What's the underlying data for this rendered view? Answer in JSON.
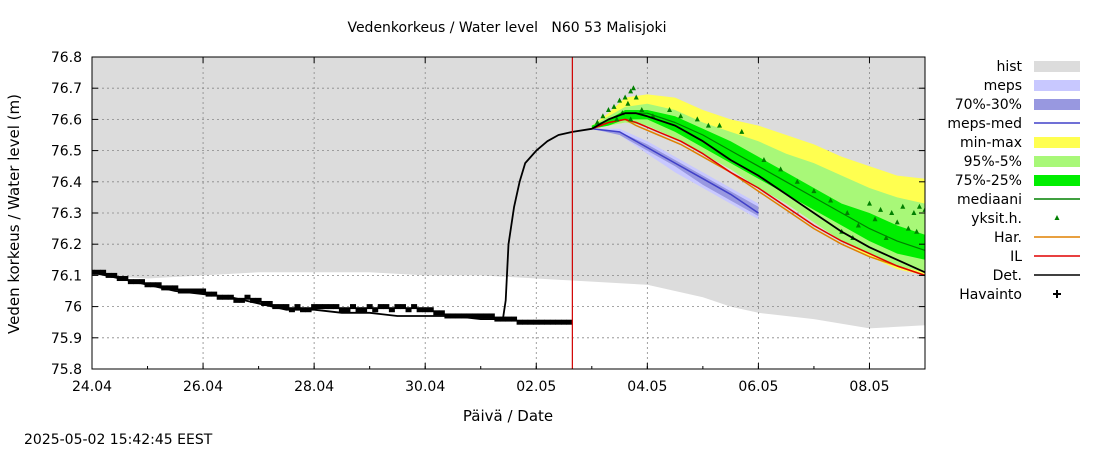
{
  "chart_data": {
    "type": "line",
    "title": "Vedenkorkeus / Water level   N60 53 Malisjoki",
    "xlabel": "Päivä / Date",
    "ylabel": "Veden korkeus / Water level (m)",
    "timestamp": "2025-05-02 15:42:45 EEST",
    "x_unit": "days (0 = 24.04.2025)",
    "xlim": [
      0,
      15
    ],
    "ylim": [
      75.8,
      76.8
    ],
    "grid": true,
    "legend_position": "right",
    "x_ticks": [
      {
        "x": 0,
        "label": "24.04"
      },
      {
        "x": 2,
        "label": "26.04"
      },
      {
        "x": 4,
        "label": "28.04"
      },
      {
        "x": 6,
        "label": "30.04"
      },
      {
        "x": 8,
        "label": "02.05"
      },
      {
        "x": 10,
        "label": "04.05"
      },
      {
        "x": 12,
        "label": "06.05"
      },
      {
        "x": 14,
        "label": "08.05"
      }
    ],
    "y_ticks": [
      {
        "y": 75.8,
        "label": "75.8"
      },
      {
        "y": 75.9,
        "label": "75.9"
      },
      {
        "y": 76.0,
        "label": "76"
      },
      {
        "y": 76.1,
        "label": "76.1"
      },
      {
        "y": 76.2,
        "label": "76.2"
      },
      {
        "y": 76.3,
        "label": "76.3"
      },
      {
        "y": 76.4,
        "label": "76.4"
      },
      {
        "y": 76.5,
        "label": "76.5"
      },
      {
        "y": 76.6,
        "label": "76.6"
      },
      {
        "y": 76.7,
        "label": "76.7"
      },
      {
        "y": 76.8,
        "label": "76.8"
      }
    ],
    "now_marker_x": 8.65,
    "now_marker_color": "#d00000",
    "legend": [
      {
        "key": "hist",
        "label": "hist",
        "kind": "box",
        "color": "#dcdcdc"
      },
      {
        "key": "meps",
        "label": "meps",
        "kind": "box",
        "color": "#c8c8ff"
      },
      {
        "key": "meps7030",
        "label": "70%-30%",
        "kind": "box",
        "color": "#9898e0"
      },
      {
        "key": "mepsmed",
        "label": "meps-med",
        "kind": "line",
        "color": "#4040c8"
      },
      {
        "key": "minmax",
        "label": "min-max",
        "kind": "box",
        "color": "#ffff50"
      },
      {
        "key": "p955",
        "label": "95%-5%",
        "kind": "box",
        "color": "#a8f878"
      },
      {
        "key": "p7525",
        "label": "75%-25%",
        "kind": "box",
        "color": "#00ee00"
      },
      {
        "key": "mediaani",
        "label": "mediaani",
        "kind": "line",
        "color": "#008000"
      },
      {
        "key": "yksith",
        "label": "yksit.h.",
        "kind": "marker",
        "color": "#008000"
      },
      {
        "key": "har",
        "label": "Har.",
        "kind": "line",
        "color": "#e08000"
      },
      {
        "key": "il",
        "label": "IL",
        "kind": "line",
        "color": "#e00000"
      },
      {
        "key": "det",
        "label": "Det.",
        "kind": "line",
        "color": "#000000"
      },
      {
        "key": "havainto",
        "label": "Havainto",
        "kind": "plus",
        "color": "#000000"
      }
    ],
    "series": {
      "hist": {
        "color": "#dcdcdc",
        "x": [
          0,
          1,
          2,
          3,
          4,
          5,
          6,
          7,
          8,
          9,
          10,
          10.5,
          11,
          11.5,
          12,
          13,
          14,
          15
        ],
        "upper": [
          76.8,
          76.8,
          76.8,
          76.8,
          76.8,
          76.8,
          76.8,
          76.8,
          76.8,
          76.8,
          76.8,
          76.8,
          76.8,
          76.8,
          76.8,
          76.8,
          76.8,
          76.8
        ],
        "lower": [
          76.1,
          76.09,
          76.1,
          76.11,
          76.11,
          76.11,
          76.1,
          76.1,
          76.09,
          76.08,
          76.07,
          76.05,
          76.03,
          76.0,
          75.98,
          75.96,
          75.93,
          75.94
        ]
      },
      "minmax": {
        "color": "#ffff50",
        "x": [
          9.0,
          9.3,
          9.6,
          10.0,
          10.5,
          11,
          11.5,
          12,
          12.5,
          13,
          13.5,
          14,
          14.5,
          15
        ],
        "upper": [
          76.58,
          76.62,
          76.67,
          76.68,
          76.67,
          76.63,
          76.6,
          76.58,
          76.55,
          76.52,
          76.48,
          76.45,
          76.42,
          76.41
        ],
        "lower": [
          76.57,
          76.58,
          76.59,
          76.58,
          76.54,
          76.49,
          76.44,
          76.39,
          76.33,
          76.27,
          76.21,
          76.16,
          76.12,
          76.1
        ]
      },
      "p955": {
        "color": "#a8f878",
        "x": [
          9.0,
          9.3,
          9.6,
          10.0,
          10.5,
          11,
          11.5,
          12,
          12.5,
          13,
          13.5,
          14,
          14.5,
          15
        ],
        "upper": [
          76.58,
          76.61,
          76.64,
          76.65,
          76.63,
          76.59,
          76.56,
          76.53,
          76.49,
          76.46,
          76.42,
          76.38,
          76.35,
          76.33
        ],
        "lower": [
          76.57,
          76.58,
          76.59,
          76.58,
          76.54,
          76.49,
          76.44,
          76.38,
          76.33,
          76.27,
          76.21,
          76.17,
          76.13,
          76.11
        ]
      },
      "p7525": {
        "color": "#00ee00",
        "x": [
          9.0,
          9.3,
          9.6,
          10.0,
          10.5,
          11,
          11.5,
          12,
          12.5,
          13,
          13.5,
          14,
          14.5,
          15
        ],
        "upper": [
          76.58,
          76.6,
          76.63,
          76.63,
          76.61,
          76.57,
          76.53,
          76.48,
          76.43,
          76.38,
          76.33,
          76.3,
          76.26,
          76.23
        ],
        "lower": [
          76.57,
          76.58,
          76.6,
          76.6,
          76.56,
          76.51,
          76.46,
          76.41,
          76.36,
          76.31,
          76.26,
          76.21,
          76.17,
          76.15
        ]
      },
      "meps": {
        "color": "#c8c8ff",
        "x": [
          9.0,
          9.5,
          10.0,
          10.5,
          11,
          11.5,
          12
        ],
        "upper": [
          76.57,
          76.57,
          76.53,
          76.48,
          76.43,
          76.38,
          76.33
        ],
        "lower": [
          76.57,
          76.55,
          76.49,
          76.43,
          76.38,
          76.33,
          76.28
        ]
      },
      "meps7030": {
        "color": "#9898e0",
        "x": [
          9.0,
          9.5,
          10.0,
          10.5,
          11,
          11.5,
          12
        ],
        "upper": [
          76.57,
          76.56,
          76.52,
          76.47,
          76.42,
          76.37,
          76.32
        ],
        "lower": [
          76.57,
          76.55,
          76.5,
          76.45,
          76.39,
          76.34,
          76.29
        ]
      },
      "meps_med": {
        "color": "#4040c8",
        "x": [
          9.0,
          9.5,
          10.0,
          10.5,
          11,
          11.5,
          12
        ],
        "y": [
          76.57,
          76.56,
          76.51,
          76.46,
          76.41,
          76.36,
          76.3
        ]
      },
      "mediaani": {
        "color": "#008000",
        "x": [
          9.0,
          9.3,
          9.6,
          10.0,
          10.5,
          11,
          11.5,
          12,
          12.5,
          13,
          13.5,
          14,
          14.5,
          15
        ],
        "y": [
          76.57,
          76.6,
          76.62,
          76.62,
          76.59,
          76.55,
          76.5,
          76.45,
          76.4,
          76.35,
          76.3,
          76.25,
          76.21,
          76.18
        ]
      },
      "yksith": {
        "color": "#008000",
        "points": [
          [
            9.1,
            76.59
          ],
          [
            9.2,
            76.61
          ],
          [
            9.3,
            76.63
          ],
          [
            9.4,
            76.64
          ],
          [
            9.5,
            76.66
          ],
          [
            9.6,
            76.67
          ],
          [
            9.7,
            76.69
          ],
          [
            9.75,
            76.7
          ],
          [
            9.8,
            76.67
          ],
          [
            9.65,
            76.65
          ],
          [
            9.55,
            76.62
          ],
          [
            9.45,
            76.6
          ],
          [
            9.7,
            76.6
          ],
          [
            9.9,
            76.63
          ],
          [
            10.1,
            76.61
          ],
          [
            10.4,
            76.63
          ],
          [
            10.6,
            76.61
          ],
          [
            10.9,
            76.6
          ],
          [
            11.1,
            76.58
          ],
          [
            11.3,
            76.58
          ],
          [
            11.7,
            76.56
          ],
          [
            12.1,
            76.47
          ],
          [
            12.4,
            76.44
          ],
          [
            12.7,
            76.4
          ],
          [
            13.0,
            76.37
          ],
          [
            13.3,
            76.34
          ],
          [
            13.6,
            76.3
          ],
          [
            14.0,
            76.33
          ],
          [
            14.2,
            76.31
          ],
          [
            14.4,
            76.3
          ],
          [
            14.6,
            76.32
          ],
          [
            14.8,
            76.3
          ],
          [
            14.9,
            76.32
          ],
          [
            15.0,
            76.31
          ],
          [
            14.5,
            76.27
          ],
          [
            14.7,
            76.25
          ],
          [
            14.3,
            76.22
          ],
          [
            13.8,
            76.26
          ],
          [
            13.5,
            76.24
          ],
          [
            14.1,
            76.28
          ],
          [
            14.85,
            76.24
          ],
          [
            13.7,
            76.22
          ]
        ]
      },
      "har": {
        "color": "#e08000",
        "x": [
          9.0,
          9.3,
          9.6,
          9.8,
          10.2,
          10.6,
          11,
          11.5,
          12,
          12.5,
          13,
          13.5,
          14,
          14.5,
          15
        ],
        "y": [
          76.57,
          76.59,
          76.6,
          76.58,
          76.55,
          76.52,
          76.48,
          76.43,
          76.37,
          76.31,
          76.25,
          76.2,
          76.16,
          76.13,
          76.1
        ]
      },
      "il": {
        "color": "#e00000",
        "x": [
          9.0,
          9.3,
          9.6,
          9.8,
          10.2,
          10.6,
          11,
          11.5,
          12,
          12.5,
          13,
          13.5,
          14,
          14.5,
          15
        ],
        "y": [
          76.57,
          76.59,
          76.6,
          76.59,
          76.56,
          76.53,
          76.49,
          76.43,
          76.38,
          76.32,
          76.26,
          76.21,
          76.17,
          76.13,
          76.1
        ]
      },
      "det": {
        "color": "#000000",
        "x": [
          0,
          0.5,
          1,
          1.5,
          2,
          2.5,
          3,
          3.5,
          4,
          4.5,
          5,
          5.5,
          6,
          6.5,
          7,
          7.4,
          7.45,
          7.5,
          7.6,
          7.7,
          7.8,
          8.0,
          8.2,
          8.4,
          8.65,
          9.0,
          9.3,
          9.6,
          9.8,
          10.0,
          10.5,
          11,
          11.5,
          12,
          12.5,
          13,
          13.5,
          14,
          14.5,
          15
        ],
        "y": [
          76.11,
          76.09,
          76.07,
          76.05,
          76.04,
          76.03,
          76.01,
          75.99,
          75.99,
          75.98,
          75.98,
          75.97,
          75.97,
          75.97,
          75.96,
          75.96,
          76.02,
          76.2,
          76.32,
          76.4,
          76.46,
          76.5,
          76.53,
          76.55,
          76.56,
          76.57,
          76.6,
          76.62,
          76.62,
          76.61,
          76.58,
          76.53,
          76.47,
          76.42,
          76.36,
          76.3,
          76.24,
          76.19,
          76.15,
          76.11
        ]
      },
      "havainto": {
        "color": "#000000",
        "x": [
          0,
          0.1,
          0.2,
          0.3,
          0.4,
          0.5,
          0.6,
          0.7,
          0.8,
          0.9,
          1,
          1.1,
          1.2,
          1.3,
          1.4,
          1.5,
          1.6,
          1.7,
          1.8,
          1.9,
          2,
          2.1,
          2.2,
          2.3,
          2.4,
          2.5,
          2.6,
          2.7,
          2.8,
          2.9,
          3,
          3.1,
          3.2,
          3.3,
          3.4,
          3.5,
          3.6,
          3.7,
          3.8,
          3.9,
          4,
          4.1,
          4.2,
          4.3,
          4.4,
          4.5,
          4.6,
          4.7,
          4.8,
          4.9,
          5,
          5.1,
          5.2,
          5.3,
          5.4,
          5.5,
          5.6,
          5.7,
          5.8,
          5.9,
          6,
          6.1,
          6.2,
          6.3,
          6.4,
          6.5,
          6.6,
          6.7,
          6.8,
          6.9,
          7,
          7.1,
          7.2,
          7.3,
          7.4,
          7.5,
          7.6,
          7.7,
          7.8,
          7.9,
          8,
          8.1,
          8.2,
          8.3,
          8.4,
          8.5,
          8.6
        ],
        "y": [
          76.11,
          76.11,
          76.11,
          76.1,
          76.1,
          76.09,
          76.09,
          76.08,
          76.08,
          76.08,
          76.07,
          76.07,
          76.07,
          76.06,
          76.06,
          76.06,
          76.05,
          76.05,
          76.05,
          76.05,
          76.05,
          76.04,
          76.04,
          76.03,
          76.03,
          76.03,
          76.02,
          76.02,
          76.03,
          76.02,
          76.02,
          76.01,
          76.01,
          76.0,
          76.0,
          76.0,
          75.99,
          76.0,
          75.99,
          75.99,
          76.0,
          76.0,
          76.0,
          76.0,
          76.0,
          75.99,
          75.99,
          76.0,
          75.99,
          75.99,
          76.0,
          75.99,
          76.0,
          76.0,
          75.99,
          76.0,
          76.0,
          75.99,
          76.0,
          75.99,
          75.99,
          75.99,
          75.98,
          75.98,
          75.97,
          75.97,
          75.97,
          75.97,
          75.97,
          75.97,
          75.97,
          75.97,
          75.97,
          75.96,
          75.96,
          75.96,
          75.96,
          75.95,
          75.95,
          75.95,
          75.95,
          75.95,
          75.95,
          75.95,
          75.95,
          75.95,
          75.95
        ]
      }
    }
  }
}
